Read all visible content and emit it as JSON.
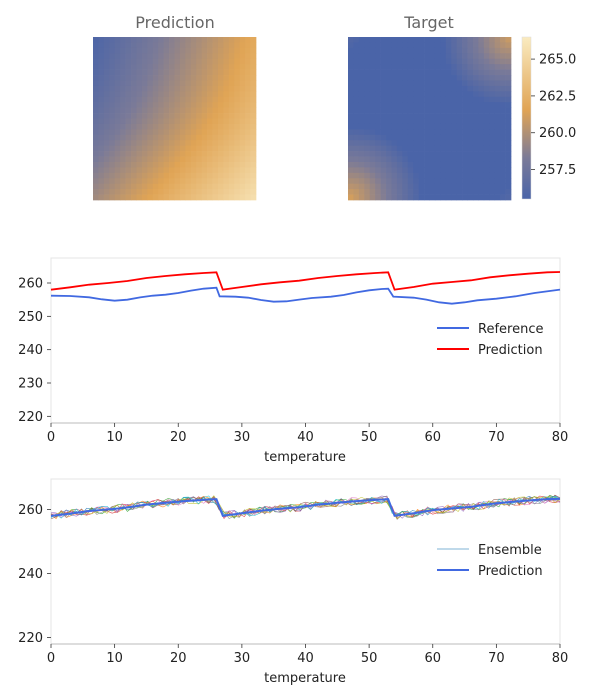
{
  "chart_data": [
    {
      "type": "heatmap",
      "title": "Prediction",
      "grid_size": 30,
      "pattern": "linear gradient from lower-right (high, ~265.5) to upper-left (low, ~255.5)",
      "vmin": 255.5,
      "vmax": 266.5
    },
    {
      "type": "heatmap",
      "title": "Target",
      "grid_size": 30,
      "pattern": "mostly uniform low value (~255.5) with higher values (~258-261) in the upper-right and lower-left corners",
      "vmin": 255.5,
      "vmax": 266.5
    },
    {
      "type": "colorbar",
      "ticks": [
        "257.5",
        "260.0",
        "262.5",
        "265.0"
      ],
      "tick_values": [
        257.5,
        260.0,
        262.5,
        265.0
      ],
      "range": [
        255.5,
        266.5
      ],
      "colors": [
        "#4a64a8",
        "#7a7a98",
        "#e0a455",
        "#faebc0"
      ]
    },
    {
      "type": "line",
      "xlabel": "temperature",
      "ylabel": "",
      "xlim": [
        0,
        80
      ],
      "ylim": [
        218,
        267.5
      ],
      "xticks": [
        0,
        10,
        20,
        30,
        40,
        50,
        60,
        70,
        80
      ],
      "yticks": [
        220,
        230,
        240,
        250,
        260
      ],
      "legend": "center-right",
      "series": [
        {
          "name": "Reference",
          "color": "#4169e1",
          "points": [
            [
              0,
              256.2
            ],
            [
              3,
              256.1
            ],
            [
              6,
              255.7
            ],
            [
              8,
              255.1
            ],
            [
              10,
              254.7
            ],
            [
              12,
              255.0
            ],
            [
              14,
              255.7
            ],
            [
              16,
              256.2
            ],
            [
              18,
              256.5
            ],
            [
              20,
              257.0
            ],
            [
              22,
              257.7
            ],
            [
              24,
              258.3
            ],
            [
              26,
              258.6
            ],
            [
              26.5,
              256.0
            ],
            [
              29,
              255.9
            ],
            [
              31,
              255.6
            ],
            [
              33,
              254.9
            ],
            [
              35,
              254.4
            ],
            [
              37,
              254.5
            ],
            [
              39,
              255.0
            ],
            [
              41,
              255.5
            ],
            [
              44,
              255.9
            ],
            [
              46,
              256.4
            ],
            [
              48,
              257.2
            ],
            [
              50,
              257.8
            ],
            [
              52,
              258.2
            ],
            [
              53,
              258.3
            ],
            [
              53.8,
              255.9
            ],
            [
              57,
              255.6
            ],
            [
              59,
              255.0
            ],
            [
              61,
              254.2
            ],
            [
              63,
              253.8
            ],
            [
              65,
              254.2
            ],
            [
              67,
              254.8
            ],
            [
              70,
              255.3
            ],
            [
              73,
              256.0
            ],
            [
              76,
              257.0
            ],
            [
              80,
              258.0
            ]
          ]
        },
        {
          "name": "Prediction",
          "color": "#ff0000",
          "points": [
            [
              0,
              258.0
            ],
            [
              3,
              258.7
            ],
            [
              6,
              259.5
            ],
            [
              9,
              260.0
            ],
            [
              12,
              260.6
            ],
            [
              15,
              261.5
            ],
            [
              18,
              262.1
            ],
            [
              21,
              262.6
            ],
            [
              24,
              263.0
            ],
            [
              26,
              263.2
            ],
            [
              27,
              258.0
            ],
            [
              30,
              258.8
            ],
            [
              33,
              259.6
            ],
            [
              36,
              260.2
            ],
            [
              39,
              260.7
            ],
            [
              42,
              261.5
            ],
            [
              45,
              262.1
            ],
            [
              48,
              262.6
            ],
            [
              51,
              263.0
            ],
            [
              53,
              263.2
            ],
            [
              54,
              258.0
            ],
            [
              57,
              258.8
            ],
            [
              60,
              259.8
            ],
            [
              63,
              260.3
            ],
            [
              66,
              260.8
            ],
            [
              69,
              261.7
            ],
            [
              72,
              262.3
            ],
            [
              75,
              262.8
            ],
            [
              78,
              263.2
            ],
            [
              80,
              263.3
            ]
          ]
        }
      ]
    },
    {
      "type": "line",
      "xlabel": "temperature",
      "ylabel": "",
      "xlim": [
        0,
        80
      ],
      "ylim": [
        218,
        269.5
      ],
      "xticks": [
        0,
        10,
        20,
        30,
        40,
        50,
        60,
        70,
        80
      ],
      "yticks": [
        220,
        240,
        260
      ],
      "legend": "center-right",
      "ensemble_members": 10,
      "ensemble_noise": 1.3,
      "ensemble_colors": [
        "#1f77b4",
        "#ff7f0e",
        "#2ca02c",
        "#d62728",
        "#9467bd",
        "#8c564b",
        "#e377c2",
        "#7f7f7f",
        "#bcbd22",
        "#17becf"
      ],
      "series": [
        {
          "name": "Ensemble",
          "color": "#7fb3d5"
        },
        {
          "name": "Prediction",
          "color": "#4169e1",
          "points": [
            [
              0,
              258.0
            ],
            [
              3,
              258.7
            ],
            [
              6,
              259.5
            ],
            [
              9,
              260.0
            ],
            [
              12,
              260.6
            ],
            [
              15,
              261.5
            ],
            [
              18,
              262.1
            ],
            [
              21,
              262.6
            ],
            [
              24,
              263.0
            ],
            [
              26,
              263.2
            ],
            [
              27,
              258.0
            ],
            [
              30,
              258.8
            ],
            [
              33,
              259.6
            ],
            [
              36,
              260.2
            ],
            [
              39,
              260.7
            ],
            [
              42,
              261.5
            ],
            [
              45,
              262.1
            ],
            [
              48,
              262.6
            ],
            [
              51,
              263.0
            ],
            [
              53,
              263.2
            ],
            [
              54,
              258.0
            ],
            [
              57,
              258.8
            ],
            [
              60,
              259.8
            ],
            [
              63,
              260.3
            ],
            [
              66,
              260.8
            ],
            [
              69,
              261.7
            ],
            [
              72,
              262.3
            ],
            [
              75,
              262.8
            ],
            [
              78,
              263.2
            ],
            [
              80,
              263.3
            ]
          ]
        }
      ]
    }
  ]
}
